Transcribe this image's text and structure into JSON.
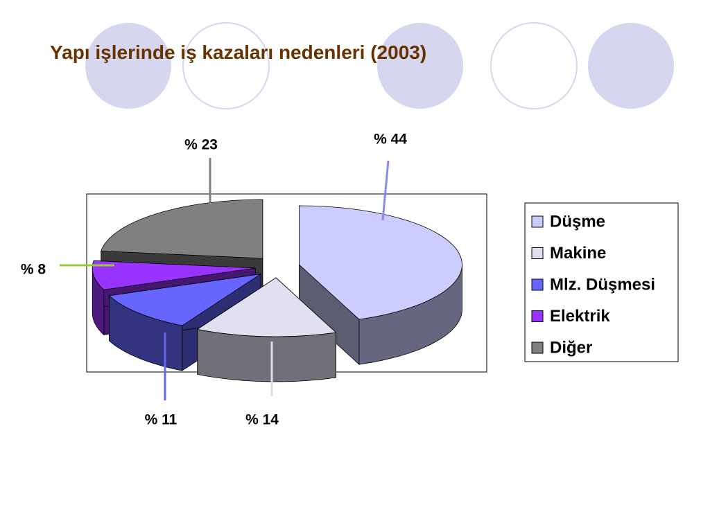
{
  "chart_data": {
    "type": "pie",
    "title": "Yapı işlerinde iş kazaları nedenleri (2003)",
    "categories": [
      "Düşme",
      "Makine",
      "Mlz. Düşmesi",
      "Elektrik",
      "Diğer"
    ],
    "values": [
      44,
      14,
      11,
      8,
      23
    ],
    "value_labels": [
      "% 44",
      "% 14",
      "% 11",
      "% 8",
      "% 23"
    ],
    "colors": [
      "#ccccff",
      "#e0e0f0",
      "#6666ff",
      "#9933ff",
      "#808080"
    ],
    "legend": "right"
  }
}
